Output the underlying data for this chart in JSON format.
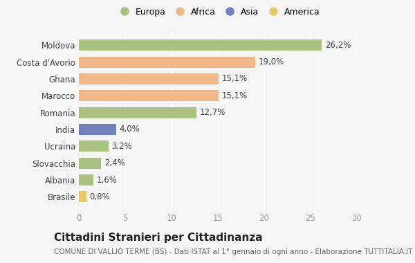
{
  "countries": [
    "Brasile",
    "Albania",
    "Slovacchia",
    "Ucraina",
    "India",
    "Romania",
    "Marocco",
    "Ghana",
    "Costa d'Avorio",
    "Moldova"
  ],
  "values": [
    0.8,
    1.6,
    2.4,
    3.2,
    4.0,
    12.7,
    15.1,
    15.1,
    19.0,
    26.2
  ],
  "labels": [
    "0,8%",
    "1,6%",
    "2,4%",
    "3,2%",
    "4,0%",
    "12,7%",
    "15,1%",
    "15,1%",
    "19,0%",
    "26,2%"
  ],
  "colors": [
    "#e8c96a",
    "#a8c080",
    "#a8c080",
    "#a8c080",
    "#7080b8",
    "#a8c080",
    "#f0b888",
    "#f0b888",
    "#f0b888",
    "#a8c080"
  ],
  "legend_labels": [
    "Europa",
    "Africa",
    "Asia",
    "America"
  ],
  "legend_colors": [
    "#a8c080",
    "#f0b888",
    "#7080b8",
    "#e8c96a"
  ],
  "xlim": [
    0,
    30
  ],
  "xticks": [
    0,
    5,
    10,
    15,
    20,
    25,
    30
  ],
  "title": "Cittadini Stranieri per Cittadinanza",
  "subtitle": "COMUNE DI VALLIO TERME (BS) - Dati ISTAT al 1° gennaio di ogni anno - Elaborazione TUTTITALIA.IT",
  "bg_color": "#f5f5f5",
  "grid_color": "#ffffff",
  "bar_height": 0.65,
  "label_fontsize": 8.5,
  "tick_fontsize": 8.5,
  "title_fontsize": 11,
  "subtitle_fontsize": 7.5
}
